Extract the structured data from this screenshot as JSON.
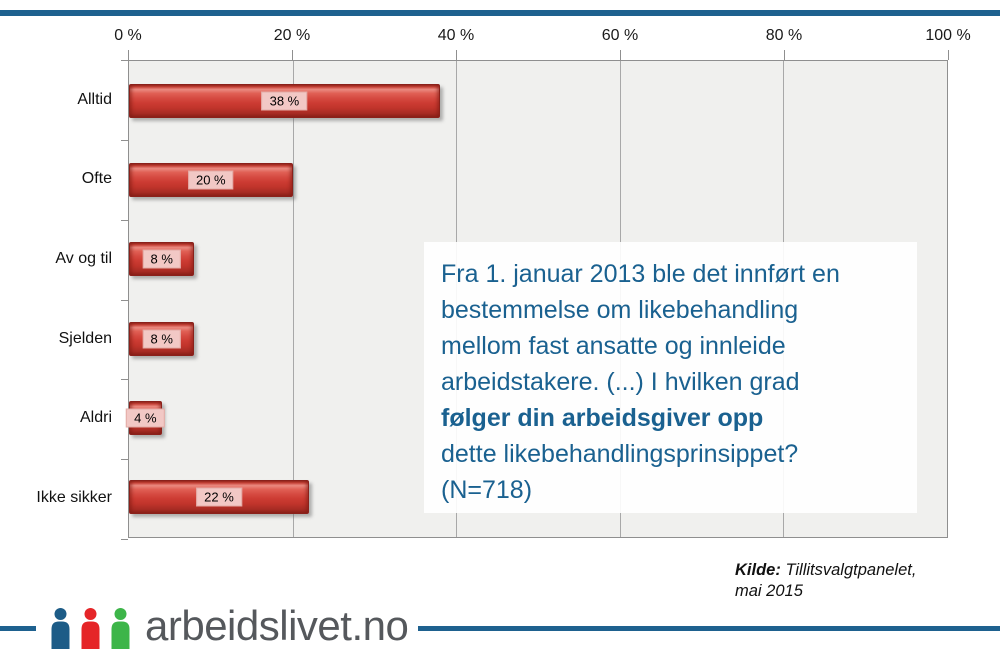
{
  "page": {
    "accent_blue": "#1e618f",
    "plot_background": "#f0f0ee",
    "bar_color": "#cd3c33",
    "value_label_background": "#f2c8c5"
  },
  "chart_data": {
    "type": "bar",
    "orientation": "horizontal",
    "title": "",
    "categories": [
      "Alltid",
      "Ofte",
      "Av og til",
      "Sjelden",
      "Aldri",
      "Ikke sikker"
    ],
    "values": [
      38,
      20,
      8,
      8,
      4,
      22
    ],
    "value_labels": [
      "38 %",
      "20 %",
      "8 %",
      "8 %",
      "4 %",
      "22 %"
    ],
    "x_tick_labels": [
      "0 %",
      "20 %",
      "40 %",
      "60 %",
      "80 %",
      "100 %"
    ],
    "xlim": [
      0,
      100
    ],
    "grid": "vertical",
    "legend": "none"
  },
  "question_box": {
    "text_color": "#1a6190",
    "lines": [
      {
        "text": "Fra 1. januar 2013 ble det innført en",
        "bold": false
      },
      {
        "text": "bestemmelse om likebehandling",
        "bold": false
      },
      {
        "text": "mellom fast ansatte og innleide",
        "bold": false
      },
      {
        "text": "arbeidstakere. (...) I hvilken grad",
        "bold": false
      },
      {
        "text": "følger din arbeidsgiver opp",
        "bold": true
      },
      {
        "text": "dette likebehandlingsprinsippet?",
        "bold": false
      },
      {
        "text": "(N=718)",
        "bold": false
      }
    ]
  },
  "source": {
    "label": "Kilde:",
    "line1": "Tillitsvalgtpanelet,",
    "line2": "mai 2015"
  },
  "logo": {
    "text": "arbeidslivet.no",
    "person_colors": [
      "#1d5c87",
      "#e52528",
      "#3db549"
    ]
  }
}
